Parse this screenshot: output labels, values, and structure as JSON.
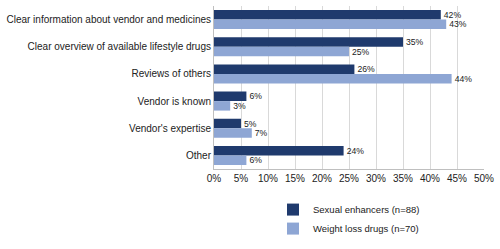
{
  "chart_data": {
    "type": "bar",
    "orientation": "horizontal",
    "categories": [
      "Clear information about vendor and medicines",
      "Clear overview of available lifestyle drugs",
      "Reviews of others",
      "Vendor is known",
      "Vendor's expertise",
      "Other"
    ],
    "series": [
      {
        "name": "Sexual enhancers (n=88)",
        "color": "#1f3a6d",
        "values": [
          42,
          35,
          26,
          6,
          5,
          24
        ],
        "value_labels": [
          "42%",
          "35%",
          "26%",
          "6%",
          "5%",
          "24%"
        ]
      },
      {
        "name": "Weight loss drugs (n=70)",
        "color": "#8ea6d4",
        "values": [
          43,
          25,
          44,
          3,
          7,
          6
        ],
        "value_labels": [
          "43%",
          "25%",
          "44%",
          "3%",
          "7%",
          "6%"
        ]
      }
    ],
    "xlim": [
      0,
      50
    ],
    "xticks": [
      {
        "value": 0,
        "label": "0%"
      },
      {
        "value": 5,
        "label": "5%"
      },
      {
        "value": 10,
        "label": "10%"
      },
      {
        "value": 15,
        "label": "15%"
      },
      {
        "value": 20,
        "label": "20%"
      },
      {
        "value": 25,
        "label": "25%"
      },
      {
        "value": 30,
        "label": "30%"
      },
      {
        "value": 35,
        "label": "35%"
      },
      {
        "value": 40,
        "label": "40%"
      },
      {
        "value": 45,
        "label": "45%"
      },
      {
        "value": 50,
        "label": "50%"
      }
    ],
    "grid": true,
    "data_labels": true,
    "legend": "bottom"
  }
}
